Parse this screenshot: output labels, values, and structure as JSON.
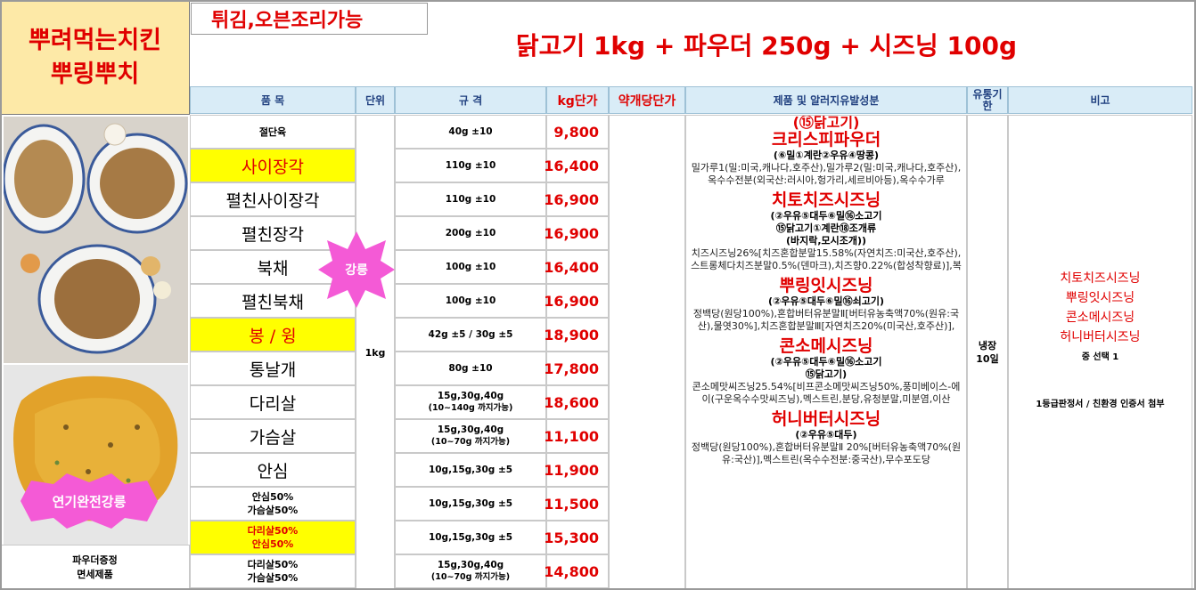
{
  "brand": {
    "line1": "뿌려먹는치킨",
    "line2": "뿌링뿌치"
  },
  "cooking_note": "튀김,오븐조리가능",
  "headline": "닭고기 1kg + 파우더 250g + 시즈닝 100g",
  "headers": {
    "item": "품 목",
    "unit": "단위",
    "spec": "규 격",
    "price_per_kg": "kg단가",
    "unit_price": "약개당단가",
    "ingredients": "제품 및 알러지유발성분",
    "shelf_life": "유통기한",
    "remarks": "비고"
  },
  "badges": {
    "strong": "강릉",
    "fried": "연기완전강릉"
  },
  "unit_value": "1kg",
  "rows": [
    {
      "name": "절단육",
      "spec": "40g ±10",
      "spec_sub": "",
      "price": "9,800"
    },
    {
      "name": "사이장각",
      "spec": "110g ±10",
      "spec_sub": "",
      "price": "16,400"
    },
    {
      "name": "펼친사이장각",
      "spec": "110g ±10",
      "spec_sub": "",
      "price": "16,900"
    },
    {
      "name": "펼친장각",
      "spec": "200g ±10",
      "spec_sub": "",
      "price": "16,900"
    },
    {
      "name": "북채",
      "spec": "100g ±10",
      "spec_sub": "",
      "price": "16,400"
    },
    {
      "name": "펼친북채",
      "spec": "100g ±10",
      "spec_sub": "",
      "price": "16,900"
    },
    {
      "name": "봉 / 윙",
      "spec": "42g ±5 / 30g ±5",
      "spec_sub": "",
      "price": "18,900"
    },
    {
      "name": "통날개",
      "spec": "80g ±10",
      "spec_sub": "",
      "price": "17,800"
    },
    {
      "name": "다리살",
      "spec": "15g,30g,40g",
      "spec_sub": "(10~140g 까지가능)",
      "price": "18,600"
    },
    {
      "name": "가슴살",
      "spec": "15g,30g,40g",
      "spec_sub": "(10~70g 까지가능)",
      "price": "11,100"
    },
    {
      "name": "안심",
      "spec": "10g,15g,30g ±5",
      "spec_sub": "",
      "price": "11,900"
    },
    {
      "name": "안심50%",
      "name2": "가슴살50%",
      "spec": "10g,15g,30g ±5",
      "spec_sub": "",
      "price": "11,500"
    },
    {
      "name": "다리살50%",
      "name2": "안심50%",
      "spec": "10g,15g,30g ±5",
      "spec_sub": "",
      "price": "15,300"
    },
    {
      "name": "다리살50%",
      "name2": "가슴살50%",
      "spec": "15g,30g,40g",
      "spec_sub": "(10~70g 까지가능)",
      "price": "14,800"
    }
  ],
  "ingredients": {
    "top_partial": "(⑮닭고기)",
    "crispy_title": "크리스피파우더",
    "crispy_allergy": "(⑥밀①계란②우유④땅콩)",
    "crispy_desc": "밀가루1(밀:미국,캐나다,호주산),밀가루2(밀:미국,캐나다,호주산),옥수수전분(외국산:러시아,헝가리,세르비아등),옥수수가루",
    "cheese_title": "치토치즈시즈닝",
    "cheese_allergy1": "(②우유⑤대두⑥밀⑯소고기",
    "cheese_allergy2": "⑮닭고기①계란⑱조개류",
    "cheese_allergy3": "(바지락,모시조개))",
    "cheese_desc": "치즈시즈닝26%[치즈혼합분말15.58%(자연치즈:미국산,호주산),스트롱체다치즈분말0.5%(덴마크),치즈향0.22%(합성착향료)],복",
    "ppuring_title": "뿌링잇시즈닝",
    "ppuring_allergy": "(②우유⑤대두⑥밀⑯쇠고기)",
    "ppuring_desc": "정백당(원당100%),혼합버터유분말Ⅱ[버터유농축액70%(원유:국산),물엿30%],치즈혼합분말Ⅲ[자연치즈20%(미국산,호주산)],",
    "corn_title": "콘소메시즈닝",
    "corn_allergy1": "(②우유⑤대두⑥밀⑯소고기",
    "corn_allergy2": "⑮닭고기)",
    "corn_desc": "콘소메맛씨즈닝25.54%[비프콘소메맛씨즈닝50%,풍미베이스-에이(구운옥수수맛씨즈닝),멕스트린,분당,유청분말,미분염,이산",
    "honey_title": "허니버터시즈닝",
    "honey_allergy": "(②우유⑤대두)",
    "honey_desc": "정백당(원당100%),혼합버터유분말Ⅱ 20%[버터유농축액70%(원유:국산)],멕스트린(옥수수전분:중국산),무수포도당"
  },
  "shelf_life": {
    "line1": "냉장",
    "line2": "10일"
  },
  "remarks": {
    "seasonings": [
      "치토치즈시즈닝",
      "뿌링잇시즈닝",
      "콘소메시즈닝",
      "허니버터시즈닝"
    ],
    "choose": "중 선택 1",
    "cert": "1등급판정서 / 친환경 인증서 첨부"
  },
  "bottom_left": {
    "line1": "파우더증정",
    "line2": "면세제품"
  },
  "colors": {
    "red": "#e00000",
    "yellow": "#ffff00",
    "header_bg": "#d9ecf7",
    "brand_bg": "#fde9a7",
    "badge": "#f45ad6"
  }
}
